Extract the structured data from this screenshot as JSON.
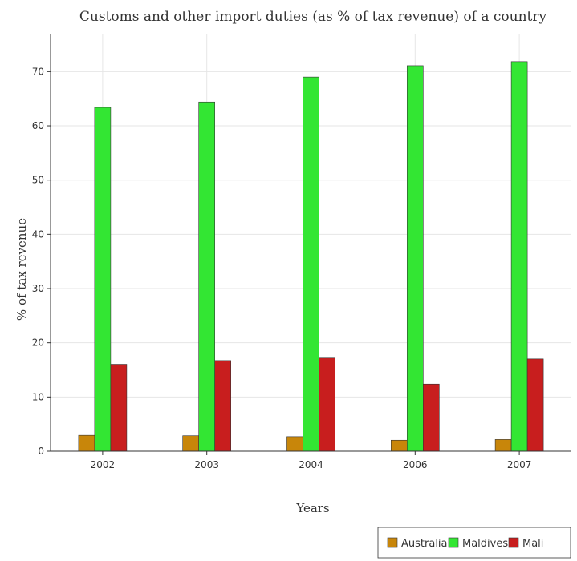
{
  "chart_data": {
    "type": "bar",
    "title": "Customs and other import duties (as % of tax revenue) of a country",
    "xlabel": "Years",
    "ylabel": "% of tax revenue",
    "categories": [
      "2002",
      "2003",
      "2004",
      "2006",
      "2007"
    ],
    "ylim": [
      0,
      77
    ],
    "yticks": [
      0,
      10,
      20,
      30,
      40,
      50,
      60,
      70
    ],
    "grid": true,
    "legend_position": "bottom-right",
    "series": [
      {
        "name": "Australia",
        "color": "#c8860a",
        "values": [
          2.93,
          2.85,
          2.68,
          2.03,
          2.16
        ]
      },
      {
        "name": "Maldives",
        "color": "#33e633",
        "values": [
          63.4,
          64.4,
          69.0,
          71.1,
          71.85
        ]
      },
      {
        "name": "Mali",
        "color": "#c81e1e",
        "values": [
          16.03,
          16.72,
          17.18,
          12.38,
          17.02
        ]
      }
    ]
  }
}
